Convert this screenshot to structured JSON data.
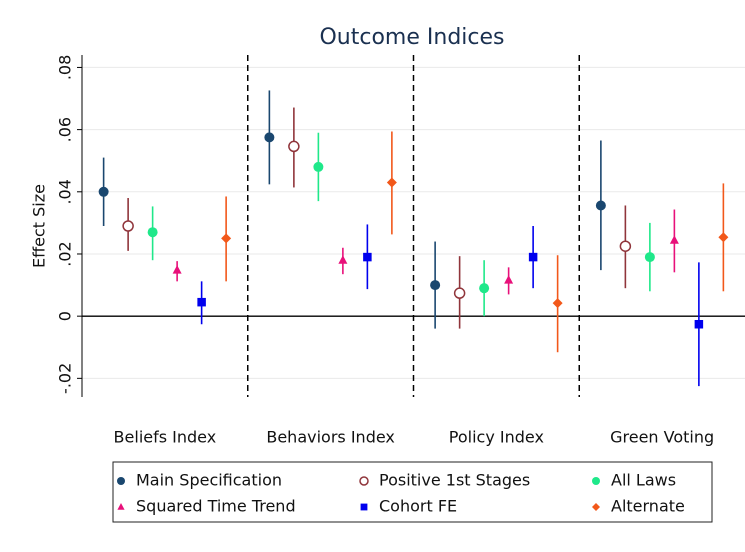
{
  "chart_data": {
    "type": "coefplot",
    "title": "Outcome Indices",
    "y_label": "Effect Size",
    "categories": [
      "Beliefs Index",
      "Behaviors Index",
      "Policy Index",
      "Green Voting"
    ],
    "ylim": [
      -0.026,
      0.084
    ],
    "yticks": [
      {
        "value": -0.02,
        "label": "-.02"
      },
      0,
      {
        "value": 0.02,
        "label": ".02"
      },
      {
        "value": 0.04,
        "label": ".04"
      },
      {
        "value": 0.06,
        "label": ".06"
      },
      {
        "value": 0.08,
        "label": ".08"
      }
    ],
    "grid": true,
    "series": [
      {
        "name": "Main Specification",
        "color": "#1a476f",
        "marker": "circle",
        "values": [
          0.04,
          0.0575,
          0.01,
          0.0356
        ],
        "lower": [
          0.029,
          0.0424,
          -0.004,
          0.0148
        ],
        "upper": [
          0.051,
          0.0726,
          0.024,
          0.0565
        ]
      },
      {
        "name": "Positive 1st Stages",
        "color": "#90353b",
        "marker": "hollow-circle",
        "values": [
          0.029,
          0.0546,
          0.0074,
          0.0225
        ],
        "lower": [
          0.021,
          0.0414,
          -0.004,
          0.009
        ],
        "upper": [
          0.038,
          0.0671,
          0.0193,
          0.0356
        ]
      },
      {
        "name": "All Laws",
        "color": "#1fe88a",
        "marker": "circle",
        "values": [
          0.027,
          0.048,
          0.009,
          0.019
        ],
        "lower": [
          0.018,
          0.037,
          0,
          0.008
        ],
        "upper": [
          0.0353,
          0.059,
          0.018,
          0.03
        ]
      },
      {
        "name": "Squared Time Trend",
        "color": "#e8107a",
        "marker": "triangle",
        "values": [
          0.0148,
          0.018,
          0.0116,
          0.0244
        ],
        "lower": [
          0.0112,
          0.0135,
          0.007,
          0.0141
        ],
        "upper": [
          0.0177,
          0.022,
          0.0157,
          0.0343
        ]
      },
      {
        "name": "Cohort FE",
        "color": "#0000ee",
        "marker": "square",
        "values": [
          0.0045,
          0.019,
          0.019,
          -0.0026
        ],
        "lower": [
          -0.0026,
          0.0087,
          0.009,
          -0.0225
        ],
        "upper": [
          0.0112,
          0.0295,
          0.029,
          0.0173
        ]
      },
      {
        "name": "Alternate",
        "color": "#f2581a",
        "marker": "diamond",
        "values": [
          0.025,
          0.043,
          0.0042,
          0.0254
        ],
        "lower": [
          0.0112,
          0.0263,
          -0.0116,
          0.008
        ],
        "upper": [
          0.0385,
          0.0594,
          0.0196,
          0.0427
        ]
      }
    ]
  }
}
